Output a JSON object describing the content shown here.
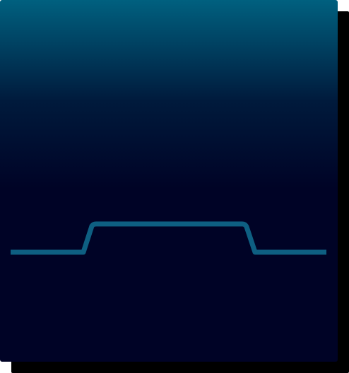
{
  "panel": {
    "gradient_top_color": "#00607f",
    "gradient_mid_color": "#001a3c",
    "gradient_bottom_color": "#000326",
    "shadow_color": "#000000"
  },
  "waveform": {
    "shape": "trapezoid-pulse",
    "stroke_color": "#0e5f82",
    "low_level": 0,
    "high_level": 1
  }
}
